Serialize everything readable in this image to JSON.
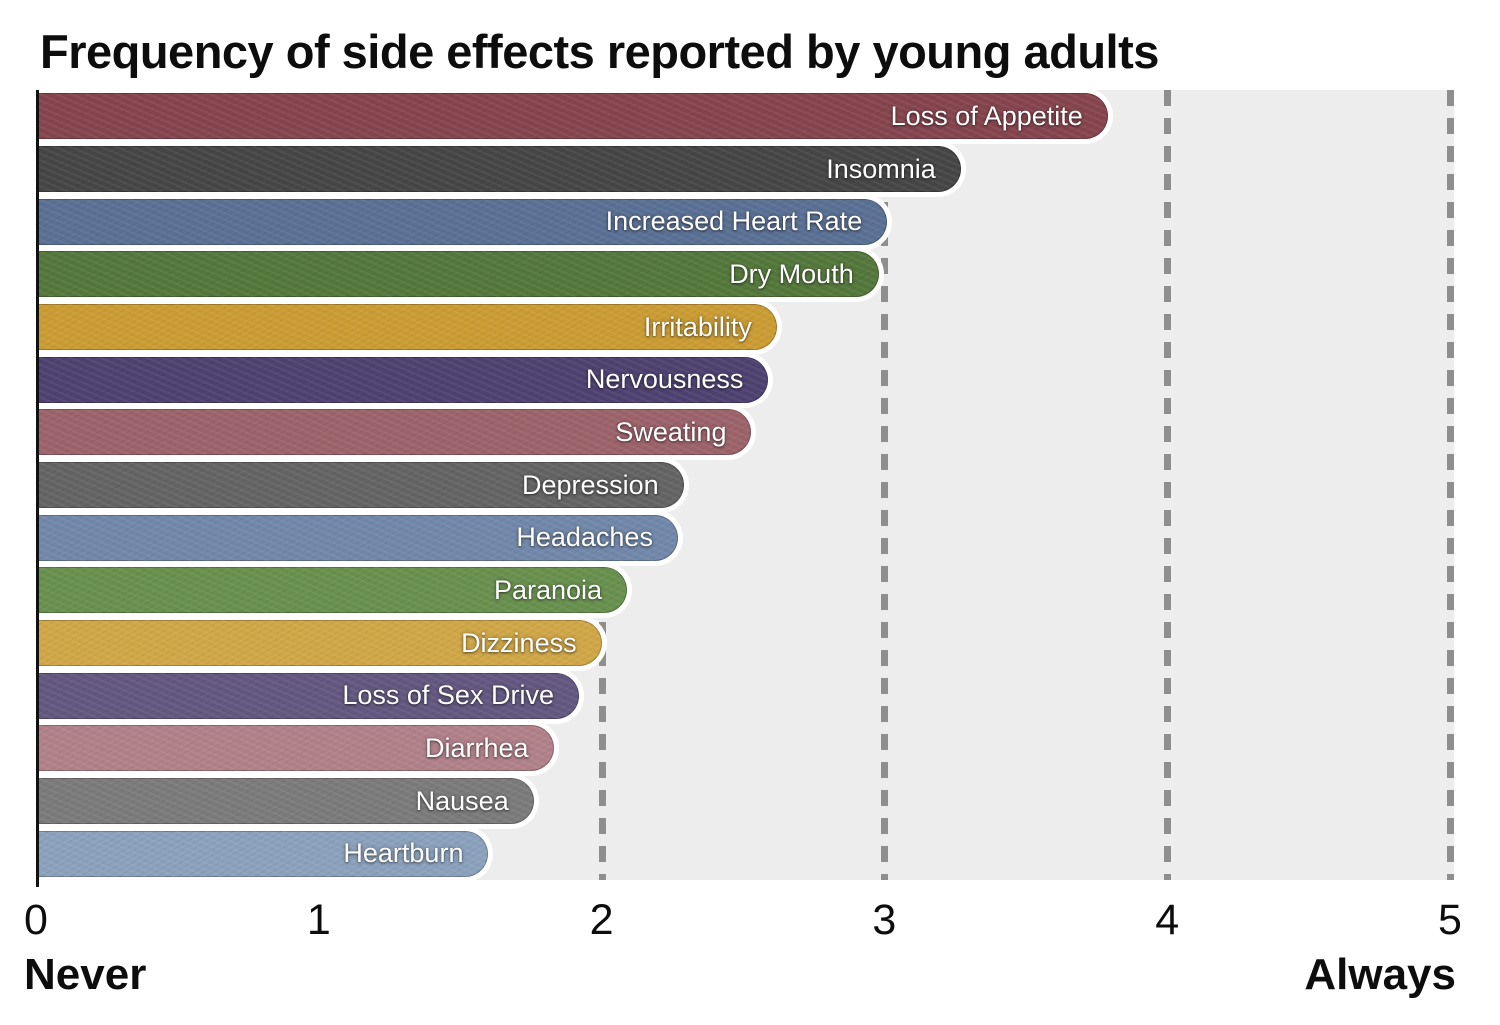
{
  "chart_data": {
    "type": "bar",
    "orientation": "horizontal",
    "title": "Frequency of side effects reported by young adults",
    "categories": [
      "Loss of Appetite",
      "Insomnia",
      "Increased Heart Rate",
      "Dry Mouth",
      "Irritability",
      "Nervousness",
      "Sweating",
      "Depression",
      "Headaches",
      "Paranoia",
      "Dizziness",
      "Loss of Sex Drive",
      "Diarrhea",
      "Nausea",
      "Heartburn"
    ],
    "values": [
      3.79,
      3.27,
      3.01,
      2.98,
      2.62,
      2.59,
      2.53,
      2.29,
      2.27,
      2.09,
      2.0,
      1.92,
      1.83,
      1.76,
      1.6
    ],
    "bar_colors": [
      "#86454e",
      "#464646",
      "#5a7094",
      "#54783c",
      "#cb9c33",
      "#4e4271",
      "#9c636b",
      "#646464",
      "#7288aa",
      "#68904e",
      "#d0a747",
      "#635880",
      "#b1818a",
      "#7b7b7b",
      "#8ba1bc"
    ],
    "xlim": [
      0,
      5
    ],
    "x_ticks": [
      "0",
      "1",
      "2",
      "3",
      "4",
      "5"
    ],
    "x_axis_left_label": "Never",
    "x_axis_right_label": "Always",
    "grid": "vertical-dashed",
    "gridline_color": "#8e8e8e",
    "plot_background": "#ededed",
    "label_text_color": "#ffffff",
    "legend": "none"
  }
}
